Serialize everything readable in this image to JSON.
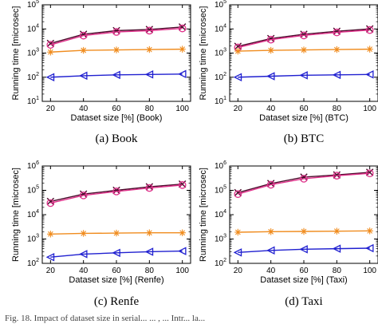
{
  "footer_text": "Fig. 18.   Impact of dataset size in serial...  ... , ... Intr... la...",
  "colors": {
    "cross": "#4a0a2a",
    "circle": "#e0308a",
    "star": "#f08c1e",
    "triangle": "#2020d0"
  },
  "chart_data": [
    {
      "type": "line",
      "caption": "(a)  Book",
      "xlabel": "Dataset size [%] (Book)",
      "ylabel": "Running time [microsec]",
      "yscale": "log",
      "xlim": [
        15,
        105
      ],
      "ylim_exp": [
        1,
        5
      ],
      "x": [
        20,
        40,
        60,
        80,
        100
      ],
      "xticks": [
        "20",
        "40",
        "60",
        "80",
        "100"
      ],
      "series": [
        {
          "marker": "x",
          "color": "#4a0a2a",
          "values": [
            2500,
            6000,
            8500,
            9500,
            12000
          ]
        },
        {
          "marker": "o",
          "color": "#e0308a",
          "values": [
            2200,
            5300,
            7500,
            8500,
            10500
          ]
        },
        {
          "marker": "*",
          "color": "#f08c1e",
          "values": [
            1100,
            1300,
            1350,
            1400,
            1450
          ]
        },
        {
          "marker": "<",
          "color": "#2020d0",
          "values": [
            100,
            115,
            125,
            130,
            135
          ]
        }
      ]
    },
    {
      "type": "line",
      "caption": "(b)  BTC",
      "xlabel": "Dataset size [%] (BTC)",
      "ylabel": "Running time [microsec]",
      "yscale": "log",
      "xlim": [
        15,
        105
      ],
      "ylim_exp": [
        1,
        5
      ],
      "x": [
        20,
        40,
        60,
        80,
        100
      ],
      "xticks": [
        "20",
        "40",
        "60",
        "80",
        "100"
      ],
      "series": [
        {
          "marker": "x",
          "color": "#4a0a2a",
          "values": [
            1900,
            4000,
            6000,
            8000,
            10000
          ]
        },
        {
          "marker": "o",
          "color": "#e0308a",
          "values": [
            1700,
            3600,
            5400,
            7200,
            9000
          ]
        },
        {
          "marker": "*",
          "color": "#f08c1e",
          "values": [
            1200,
            1300,
            1350,
            1400,
            1450
          ]
        },
        {
          "marker": "<",
          "color": "#2020d0",
          "values": [
            100,
            110,
            120,
            125,
            130
          ]
        }
      ]
    },
    {
      "type": "line",
      "caption": "(c)  Renfe",
      "xlabel": "Dataset size [%] (Renfe)",
      "ylabel": "Running time [microsec]",
      "yscale": "log",
      "xlim": [
        15,
        105
      ],
      "ylim_exp": [
        2,
        6
      ],
      "x": [
        20,
        40,
        60,
        80,
        100
      ],
      "xticks": [
        "20",
        "40",
        "60",
        "80",
        "100"
      ],
      "series": [
        {
          "marker": "x",
          "color": "#4a0a2a",
          "values": [
            35000,
            70000,
            100000,
            140000,
            180000
          ]
        },
        {
          "marker": "o",
          "color": "#e0308a",
          "values": [
            30000,
            62000,
            90000,
            125000,
            165000
          ]
        },
        {
          "marker": "*",
          "color": "#f08c1e",
          "values": [
            1600,
            1700,
            1750,
            1800,
            1800
          ]
        },
        {
          "marker": "<",
          "color": "#2020d0",
          "values": [
            180,
            240,
            270,
            300,
            320
          ]
        }
      ]
    },
    {
      "type": "line",
      "caption": "(d)  Taxi",
      "xlabel": "Dataset size [%] (Taxi)",
      "ylabel": "Running time [microsec]",
      "yscale": "log",
      "xlim": [
        15,
        105
      ],
      "ylim_exp": [
        2,
        6
      ],
      "x": [
        20,
        40,
        60,
        80,
        100
      ],
      "xticks": [
        "20",
        "40",
        "60",
        "80",
        "100"
      ],
      "series": [
        {
          "marker": "x",
          "color": "#4a0a2a",
          "values": [
            80000,
            190000,
            350000,
            430000,
            550000
          ]
        },
        {
          "marker": "o",
          "color": "#e0308a",
          "values": [
            70000,
            170000,
            300000,
            400000,
            500000
          ]
        },
        {
          "marker": "*",
          "color": "#f08c1e",
          "values": [
            1900,
            2000,
            2050,
            2100,
            2150
          ]
        },
        {
          "marker": "<",
          "color": "#2020d0",
          "values": [
            280,
            340,
            380,
            400,
            420
          ]
        }
      ]
    }
  ]
}
